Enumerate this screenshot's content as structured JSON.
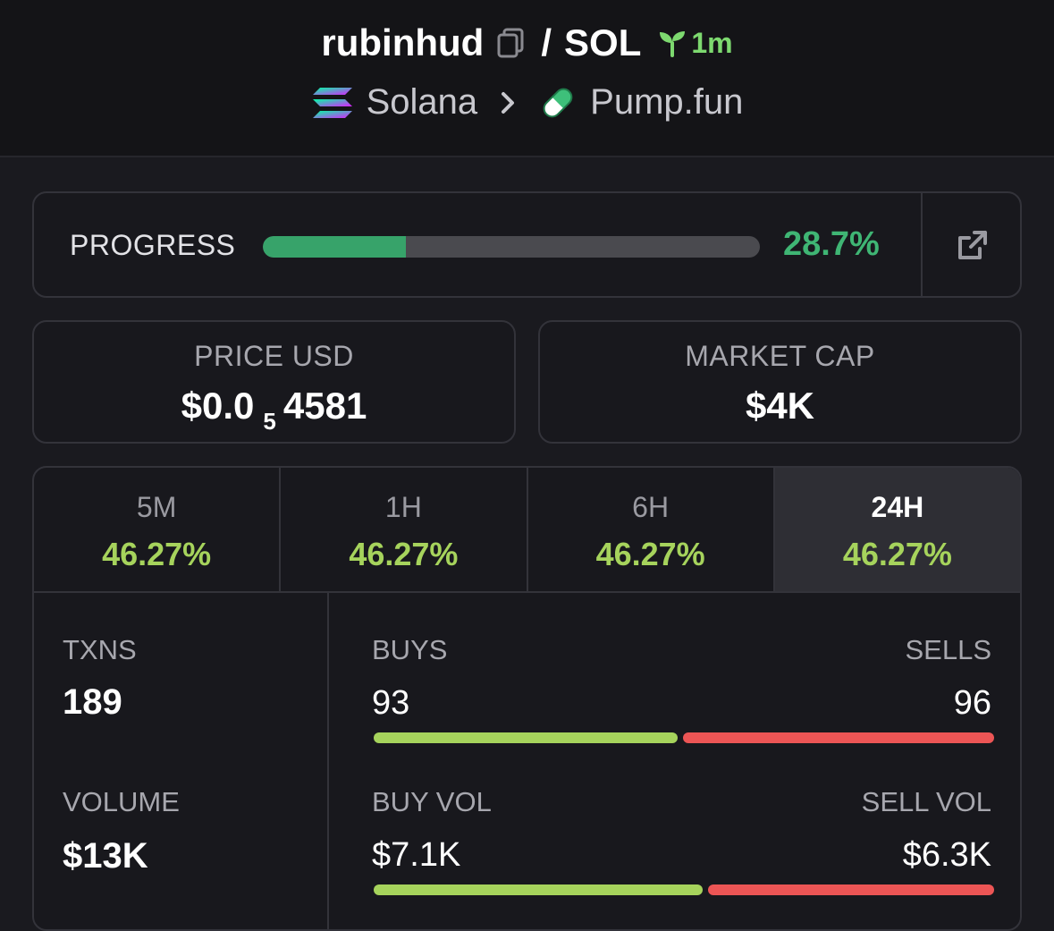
{
  "header": {
    "token_name": "rubinhud",
    "pair_separator": "/",
    "quote": "SOL",
    "age": "1m",
    "chain": "Solana",
    "dex": "Pump.fun",
    "age_color": "#7dd96f"
  },
  "progress": {
    "label": "PROGRESS",
    "percent": 28.7,
    "percent_text": "28.7%",
    "bar_color": "#37a36a"
  },
  "price": {
    "label": "PRICE USD",
    "prefix": "$0.0",
    "zero_count": "5",
    "digits": "4581"
  },
  "market_cap": {
    "label": "MARKET CAP",
    "value": "$4K"
  },
  "timeframes": [
    {
      "label": "5M",
      "change": "46.27%",
      "active": false
    },
    {
      "label": "1H",
      "change": "46.27%",
      "active": false
    },
    {
      "label": "6H",
      "change": "46.27%",
      "active": false
    },
    {
      "label": "24H",
      "change": "46.27%",
      "active": true
    }
  ],
  "metrics": {
    "txns_label": "TXNS",
    "txns_value": "189",
    "volume_label": "VOLUME",
    "volume_value": "$13K",
    "buys_label": "BUYS",
    "buys_value": "93",
    "sells_label": "SELLS",
    "sells_value": "96",
    "buy_vol_label": "BUY VOL",
    "buy_vol_value": "$7.1K",
    "sell_vol_label": "SELL VOL",
    "sell_vol_value": "$6.3K",
    "buy_color": "#a6d35c",
    "sell_color": "#ec5555"
  },
  "icons": {
    "copy": "copy-icon",
    "age": "sprout-icon",
    "chain": "solana-logo-icon",
    "chevron": "chevron-right-icon",
    "dex": "pill-icon",
    "external": "external-link-icon"
  }
}
